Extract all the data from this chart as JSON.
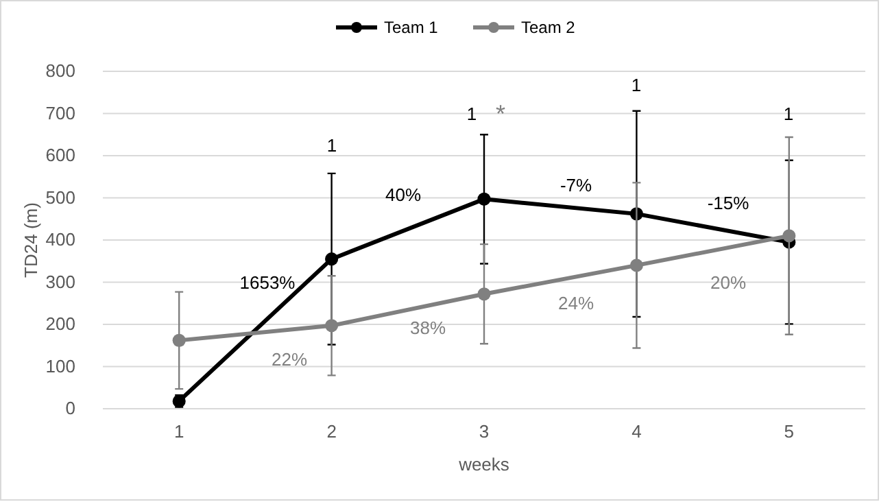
{
  "chart_data": {
    "type": "line",
    "xlabel": "weeks",
    "ylabel": "TD24 (m)",
    "x": [
      1,
      2,
      3,
      4,
      5
    ],
    "xlim": [
      0.5,
      5.5
    ],
    "xticks": [
      1,
      2,
      3,
      4,
      5
    ],
    "ylim": [
      0,
      800
    ],
    "yticks": [
      0,
      100,
      200,
      300,
      400,
      500,
      600,
      700,
      800
    ],
    "grid": "y",
    "legend": "top",
    "marker": "circle",
    "line_style": "solid",
    "series": [
      {
        "name": "Team 1",
        "color": "#000000",
        "values": [
          18,
          355,
          497,
          462,
          395
        ],
        "errors": [
          14,
          203,
          153,
          244,
          194
        ]
      },
      {
        "name": "Team 2",
        "color": "#808080",
        "values": [
          162,
          197,
          272,
          340,
          410
        ],
        "errors": [
          115,
          118,
          118,
          196,
          234
        ]
      }
    ],
    "annotations": [
      "1",
      "1",
      "*",
      "1",
      "1",
      "1653%",
      "40%",
      "-7%",
      "-15%",
      "22%",
      "38%",
      "24%",
      "20%"
    ]
  }
}
